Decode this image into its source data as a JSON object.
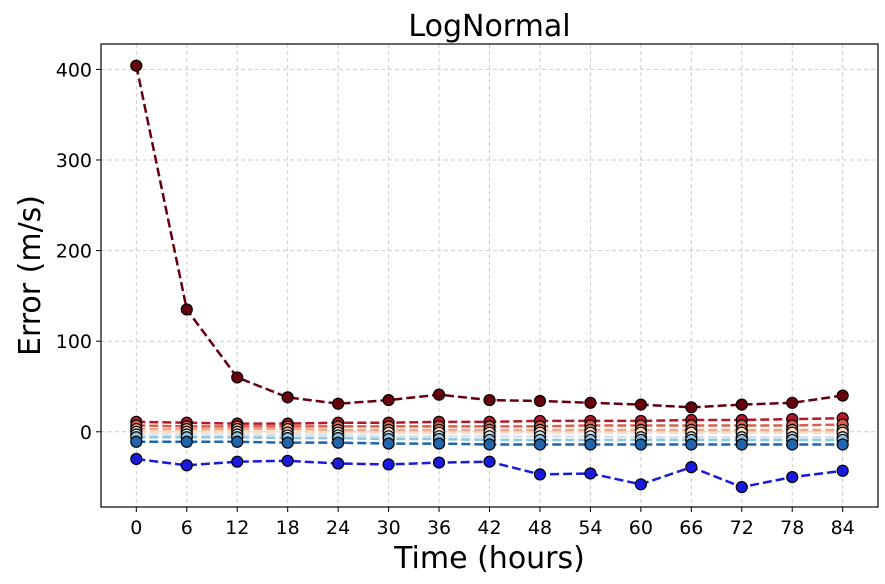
{
  "chart_data": {
    "type": "line",
    "title": "LogNormal",
    "xlabel": "Time (hours)",
    "ylabel": "Error (m/s)",
    "x": [
      0,
      6,
      12,
      18,
      24,
      30,
      36,
      42,
      48,
      54,
      60,
      66,
      72,
      78,
      84
    ],
    "xlim": [
      -4.2,
      88.2
    ],
    "ylim": [
      -83,
      428
    ],
    "yticks": [
      0,
      100,
      200,
      300,
      400
    ],
    "grid": true,
    "line_style": "dashed",
    "marker": "circle",
    "series": [
      {
        "color": "#67000d",
        "values": [
          404,
          135,
          60,
          38,
          31,
          35,
          41,
          35,
          34,
          32,
          30,
          27,
          30,
          32,
          40
        ]
      },
      {
        "color": "#b2182b",
        "values": [
          11,
          10,
          9,
          9,
          10,
          10,
          11,
          11,
          12,
          12,
          12,
          13,
          13,
          14,
          15
        ]
      },
      {
        "color": "#d6604d",
        "values": [
          7,
          6,
          6,
          6,
          6,
          6,
          6,
          6,
          6,
          7,
          7,
          7,
          7,
          7,
          8
        ]
      },
      {
        "color": "#f4a582",
        "values": [
          3,
          3,
          3,
          3,
          2,
          2,
          2,
          2,
          2,
          2,
          2,
          2,
          2,
          2,
          2
        ]
      },
      {
        "color": "#fddbc7",
        "values": [
          0,
          0,
          0,
          -1,
          -1,
          -1,
          -1,
          -1,
          -1,
          -1,
          -1,
          -1,
          -1,
          -1,
          -1
        ]
      },
      {
        "color": "#d1e5f0",
        "values": [
          -3,
          -3,
          -3,
          -4,
          -4,
          -5,
          -5,
          -5,
          -5,
          -5,
          -6,
          -6,
          -6,
          -6,
          -6
        ]
      },
      {
        "color": "#92c5de",
        "values": [
          -6,
          -6,
          -6,
          -7,
          -7,
          -8,
          -8,
          -9,
          -9,
          -9,
          -9,
          -9,
          -9,
          -9,
          -9
        ]
      },
      {
        "color": "#2166ac",
        "values": [
          -11,
          -11,
          -11,
          -12,
          -12,
          -13,
          -13,
          -14,
          -14,
          -14,
          -14,
          -14,
          -14,
          -14,
          -14
        ]
      },
      {
        "color": "#1a1adc",
        "values": [
          -30,
          -37,
          -33,
          -32,
          -35,
          -36,
          -34,
          -33,
          -47,
          -46,
          -58,
          -39,
          -61,
          -50,
          -43
        ]
      }
    ]
  }
}
